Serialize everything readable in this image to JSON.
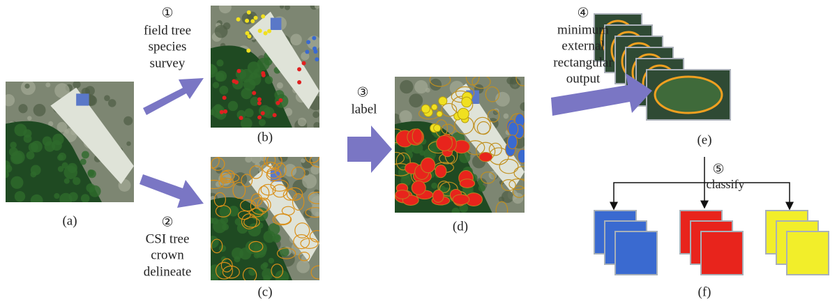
{
  "steps": [
    {
      "number": "①",
      "lines": [
        "field tree",
        "species",
        "survey"
      ]
    },
    {
      "number": "②",
      "lines": [
        "CSI tree",
        "crown",
        "delineate"
      ]
    },
    {
      "number": "③",
      "lines": [
        "label"
      ]
    },
    {
      "number": "④",
      "lines": [
        "minimum",
        "external",
        "rectangular",
        "output"
      ]
    },
    {
      "number": "⑤",
      "lines": [
        "classify"
      ]
    }
  ],
  "panels": [
    "(a)",
    "(b)",
    "(c)",
    "(d)",
    "(e)",
    "(f)"
  ]
}
